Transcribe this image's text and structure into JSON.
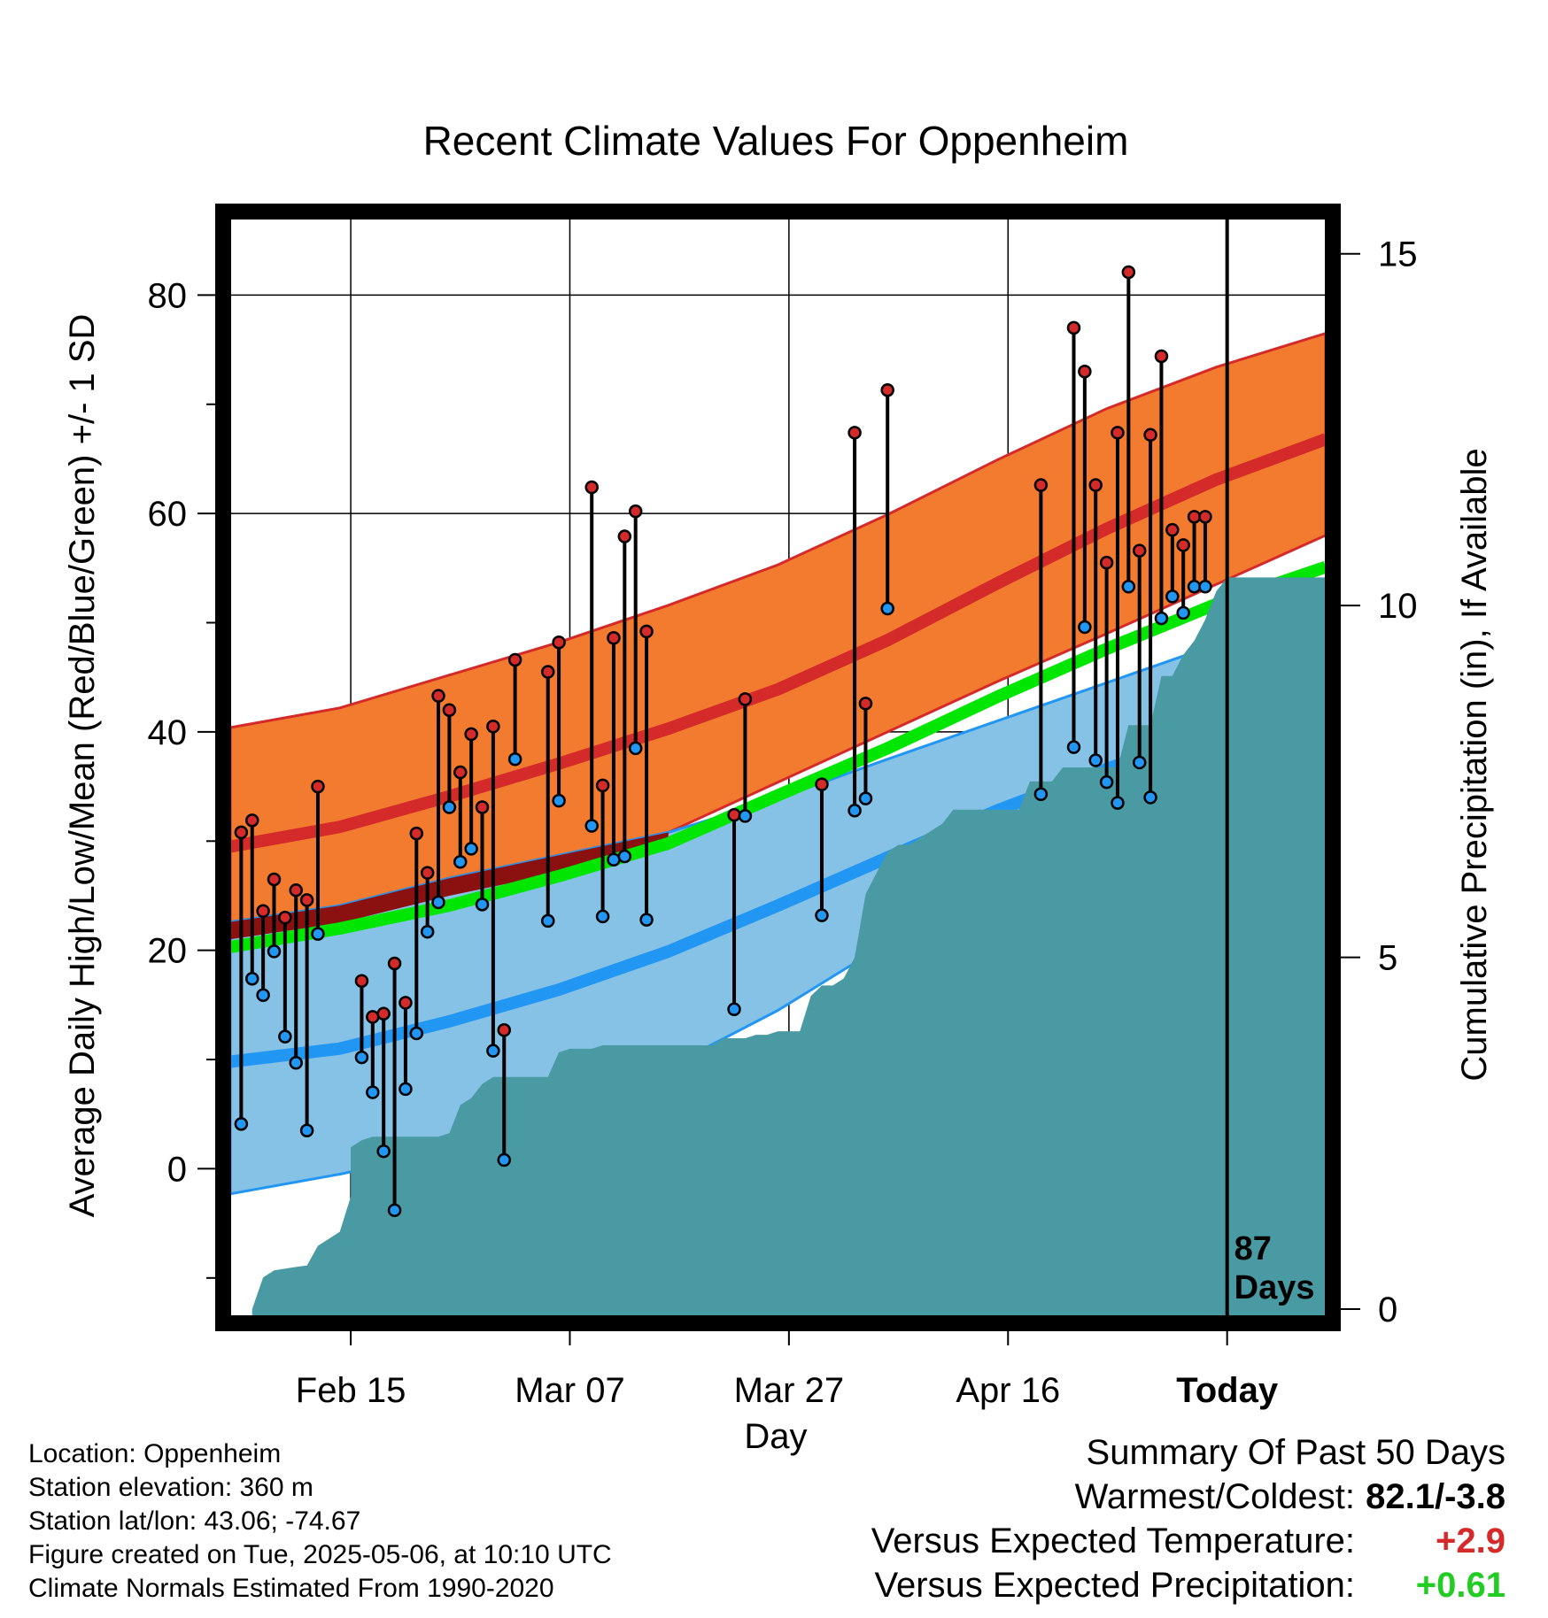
{
  "chart_data": {
    "type": "line",
    "title": "Recent Climate Values For Oppenheim",
    "xlabel": "Day",
    "ylabel": "Average Daily High/Low/Mean (Red/Blue/Green) +/- 1 SD",
    "ylabel_right": "Cumulative Precipitation (in), If Available",
    "x_ticks": [
      {
        "label": "Feb 15",
        "day": 11
      },
      {
        "label": "Mar 07",
        "day": 31
      },
      {
        "label": "Mar 27",
        "day": 51
      },
      {
        "label": "Apr 16",
        "day": 71
      },
      {
        "label": "Today",
        "day": 91,
        "bold": true
      }
    ],
    "xlim": [
      0,
      100
    ],
    "ylim": [
      -13.5,
      87
    ],
    "y_ticks": [
      0,
      20,
      40,
      60,
      80
    ],
    "y2lim": [
      -0.1,
      15.5
    ],
    "y2_ticks": [
      0,
      5,
      10,
      15
    ],
    "period_label": [
      "87",
      "Days"
    ],
    "grid": true,
    "colors": {
      "high_band": "#f37b2f",
      "high_mean": "#d42a2a",
      "overlap_band": "#8b1111",
      "low_band": "#86c1e6",
      "low_mean": "#2196f3",
      "mean_line": "#00e600",
      "precip": "#4a9aa3",
      "high_dot": "#d42a2a",
      "low_dot": "#2196f3"
    },
    "normals_x": [
      0,
      10,
      20,
      30,
      40,
      50,
      60,
      70,
      80,
      90,
      100
    ],
    "normal_high_mean": [
      29.5,
      31.3,
      34.1,
      37.1,
      40.3,
      43.9,
      48.4,
      53.6,
      58.6,
      63.1,
      66.8
    ],
    "normal_high_upper": [
      40.4,
      42.2,
      45.2,
      48.2,
      51.6,
      55.3,
      59.9,
      64.9,
      69.6,
      73.4,
      76.5
    ],
    "normal_high_lower": [
      22.6,
      24.1,
      26.6,
      28.7,
      30.8,
      35.4,
      40.0,
      44.6,
      49.0,
      53.5,
      58.0
    ],
    "normal_low_mean": [
      9.8,
      11.0,
      13.5,
      16.4,
      19.9,
      24.1,
      28.5,
      32.8,
      36.6,
      40.2,
      43.5
    ],
    "normal_low_upper": [
      22.6,
      24.1,
      26.6,
      28.7,
      30.8,
      33.9,
      37.5,
      41.0,
      44.5,
      48.0,
      51.2
    ],
    "normal_low_lower": [
      -2.3,
      -0.5,
      1.7,
      4.7,
      9.3,
      14.5,
      20.7,
      26.3,
      30.1,
      33.5,
      36.7
    ],
    "normal_mean": [
      20.3,
      22.0,
      24.1,
      26.8,
      29.8,
      34.2,
      38.5,
      43.2,
      47.6,
      51.7,
      55.1
    ],
    "days": [
      1,
      2,
      3,
      4,
      5,
      6,
      7,
      8,
      12,
      13,
      14,
      15,
      16,
      17,
      18,
      19,
      20,
      21,
      22,
      23,
      24,
      25,
      26,
      29,
      30,
      33,
      34,
      35,
      36,
      37,
      38,
      46,
      47,
      54,
      57,
      58,
      60,
      74,
      77,
      78,
      79,
      80,
      81,
      82,
      83,
      84,
      85,
      86,
      87,
      88,
      89
    ],
    "daily_high": [
      30.8,
      31.9,
      23.6,
      26.5,
      23.0,
      25.5,
      24.6,
      35.0,
      17.2,
      13.9,
      14.2,
      18.8,
      15.2,
      30.7,
      27.1,
      43.3,
      42.0,
      36.3,
      39.8,
      33.1,
      40.5,
      12.7,
      46.6,
      45.5,
      48.2,
      62.4,
      35.1,
      48.6,
      57.9,
      60.2,
      49.2,
      32.4,
      43.0,
      35.2,
      67.4,
      42.6,
      71.3,
      62.6,
      77.0,
      73.0,
      62.6,
      55.5,
      67.4,
      82.1,
      56.6,
      67.2,
      74.4,
      58.5,
      57.1,
      59.7,
      59.7
    ],
    "daily_low": [
      4.1,
      17.4,
      15.9,
      19.9,
      12.1,
      9.7,
      3.5,
      21.5,
      10.2,
      7.0,
      1.6,
      -3.8,
      7.3,
      12.4,
      21.7,
      24.4,
      33.1,
      28.1,
      29.3,
      24.2,
      10.8,
      0.8,
      37.5,
      22.7,
      33.7,
      31.4,
      23.1,
      28.3,
      28.6,
      38.5,
      22.8,
      14.6,
      32.3,
      23.2,
      32.8,
      33.9,
      51.3,
      34.3,
      38.6,
      49.6,
      37.4,
      35.4,
      33.5,
      53.3,
      37.2,
      34.0,
      50.4,
      52.4,
      50.9,
      53.3,
      53.3
    ],
    "precip_days": [
      2,
      3,
      4,
      6,
      7,
      8,
      9,
      10,
      11,
      11,
      12,
      13,
      14,
      15,
      16,
      17,
      18,
      19,
      20,
      21,
      22,
      23,
      24,
      25,
      26,
      27,
      28,
      29,
      30,
      31,
      32,
      33,
      34,
      35,
      36,
      37,
      38,
      39,
      40,
      41,
      42,
      43,
      44,
      45,
      46,
      47,
      48,
      49,
      50,
      51,
      52,
      53,
      54,
      55,
      56,
      57,
      58,
      59,
      60,
      61,
      62,
      63,
      64,
      65,
      66,
      67,
      68,
      69,
      70,
      71,
      72,
      73,
      74,
      75,
      76,
      77,
      78,
      79,
      80,
      81,
      82,
      83,
      84,
      85,
      86,
      87,
      88,
      89,
      90,
      91,
      100
    ],
    "precip_cum": [
      0.0,
      0.45,
      0.55,
      0.6,
      0.62,
      0.9,
      1.0,
      1.1,
      1.6,
      2.3,
      2.4,
      2.45,
      2.45,
      2.45,
      2.45,
      2.45,
      2.45,
      2.45,
      2.5,
      2.9,
      3.0,
      3.2,
      3.3,
      3.3,
      3.3,
      3.3,
      3.3,
      3.3,
      3.65,
      3.7,
      3.7,
      3.7,
      3.75,
      3.75,
      3.75,
      3.75,
      3.75,
      3.75,
      3.75,
      3.75,
      3.75,
      3.75,
      3.75,
      3.85,
      3.85,
      3.85,
      3.9,
      3.9,
      3.95,
      3.95,
      3.95,
      4.45,
      4.6,
      4.6,
      4.7,
      5.0,
      5.9,
      6.2,
      6.5,
      6.6,
      6.6,
      6.7,
      6.8,
      6.9,
      7.1,
      7.1,
      7.1,
      7.1,
      7.1,
      7.1,
      7.1,
      7.5,
      7.5,
      7.5,
      7.7,
      7.7,
      7.7,
      7.7,
      7.7,
      7.7,
      8.3,
      8.3,
      8.3,
      9.0,
      9.0,
      9.3,
      9.5,
      9.8,
      10.2,
      10.4,
      10.4
    ]
  },
  "info_lines": [
    "Location: Oppenheim",
    "Station elevation: 360 m",
    "Station lat/lon: 43.06; -74.67",
    "Figure created on Tue, 2025-05-06, at 10:10 UTC",
    "Climate Normals Estimated From 1990-2020"
  ],
  "summary": {
    "heading": "Summary Of Past 50 Days",
    "rows": [
      {
        "label": "Warmest/Coldest:",
        "value": "82.1/-3.8",
        "color": "#000000"
      },
      {
        "label": "Versus Expected Temperature:",
        "value": "+2.9",
        "color": "#d42a2a"
      },
      {
        "label": "Versus Expected Precipitation:",
        "value": "+0.61",
        "color": "#22cc22"
      }
    ]
  }
}
